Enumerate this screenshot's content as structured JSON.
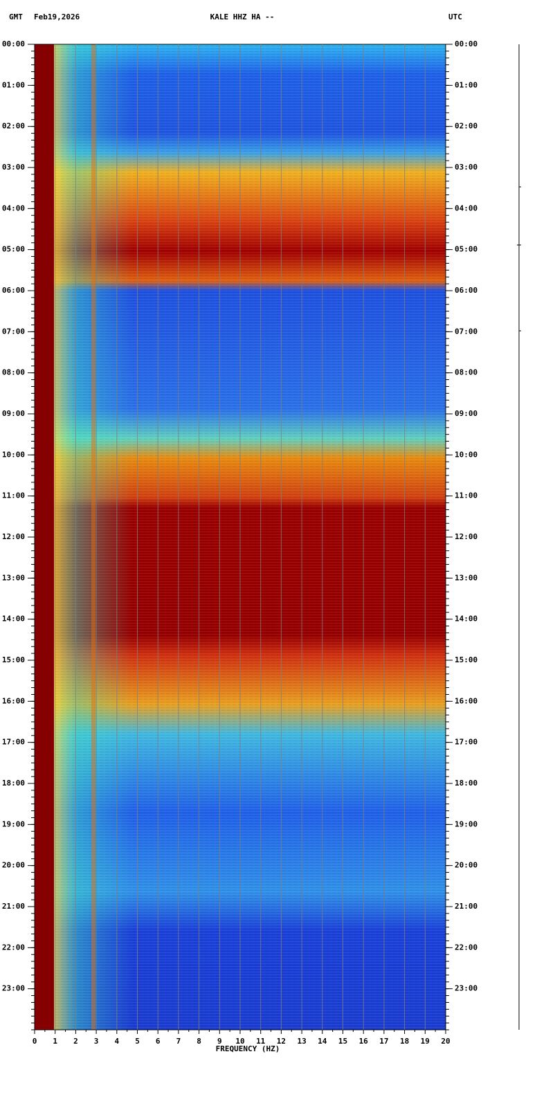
{
  "chart_data": {
    "type": "spectrogram",
    "title": "KALE HHZ HA --",
    "timezone_left": "GMT",
    "date": "Feb19,2026",
    "timezone_right": "UTC",
    "xlabel": "FREQUENCY (HZ)",
    "xlim": [
      0,
      20
    ],
    "xticks": [
      0,
      1,
      2,
      3,
      4,
      5,
      6,
      7,
      8,
      9,
      10,
      11,
      12,
      13,
      14,
      15,
      16,
      17,
      18,
      19,
      20
    ],
    "ylim": [
      0,
      24
    ],
    "yticks": [
      {
        "value": 0,
        "label": "00:00"
      },
      {
        "value": 1,
        "label": "01:00"
      },
      {
        "value": 2,
        "label": "02:00"
      },
      {
        "value": 3,
        "label": "03:00"
      },
      {
        "value": 4,
        "label": "04:00"
      },
      {
        "value": 5,
        "label": "05:00"
      },
      {
        "value": 6,
        "label": "06:00"
      },
      {
        "value": 7,
        "label": "07:00"
      },
      {
        "value": 8,
        "label": "08:00"
      },
      {
        "value": 9,
        "label": "09:00"
      },
      {
        "value": 10,
        "label": "10:00"
      },
      {
        "value": 11,
        "label": "11:00"
      },
      {
        "value": 12,
        "label": "12:00"
      },
      {
        "value": 13,
        "label": "13:00"
      },
      {
        "value": 14,
        "label": "14:00"
      },
      {
        "value": 15,
        "label": "15:00"
      },
      {
        "value": 16,
        "label": "16:00"
      },
      {
        "value": 17,
        "label": "17:00"
      },
      {
        "value": 18,
        "label": "18:00"
      },
      {
        "value": 19,
        "label": "19:00"
      },
      {
        "value": 20,
        "label": "20:00"
      },
      {
        "value": 21,
        "label": "21:00"
      },
      {
        "value": 22,
        "label": "22:00"
      },
      {
        "value": 23,
        "label": "23:00"
      }
    ],
    "grid": true
  }
}
